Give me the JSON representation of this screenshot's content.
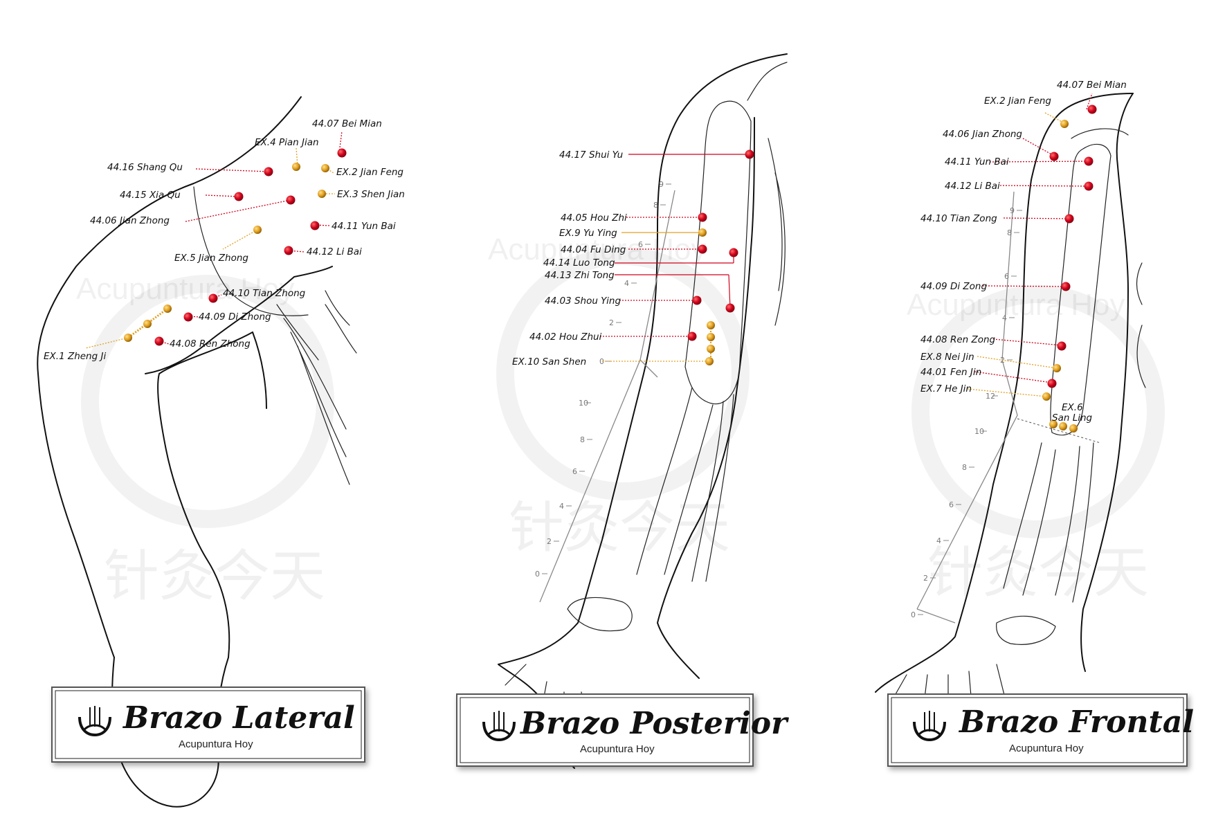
{
  "colors": {
    "main_point": "#d0021b",
    "extra_point": "#e2a021",
    "outline": "#111111",
    "scale": "#888888"
  },
  "watermark": {
    "text": "Acupuntura Hoy",
    "chinese": "针灸今天"
  },
  "panels": [
    {
      "title": "Brazo Lateral",
      "subtitle": "Acupuntura Hoy",
      "points": [
        {
          "label": "44.07 Bei Mian",
          "type": "main"
        },
        {
          "label": "EX.4 Pian Jian",
          "type": "extra"
        },
        {
          "label": "44.16 Shang Qu",
          "type": "main"
        },
        {
          "label": "EX.2 Jian Feng",
          "type": "extra"
        },
        {
          "label": "44.15 Xia Qu",
          "type": "main"
        },
        {
          "label": "EX.3 Shen Jian",
          "type": "extra"
        },
        {
          "label": "44.06 Jian Zhong",
          "type": "main"
        },
        {
          "label": "44.11 Yun Bai",
          "type": "main"
        },
        {
          "label": "EX.5 Jian Zhong",
          "type": "extra"
        },
        {
          "label": "44.12 Li Bai",
          "type": "main"
        },
        {
          "label": "44.10 Tian Zhong",
          "type": "main"
        },
        {
          "label": "44.09 Di Zhong",
          "type": "main"
        },
        {
          "label": "44.08 Ren Zhong",
          "type": "main"
        },
        {
          "label": "EX.1 Zheng Ji",
          "type": "extra"
        }
      ]
    },
    {
      "title": "Brazo Posterior",
      "subtitle": "Acupuntura Hoy",
      "scale_upper": [
        "9",
        "8",
        "6",
        "4",
        "2",
        "0"
      ],
      "scale_lower": [
        "10",
        "8",
        "6",
        "4",
        "2",
        "0"
      ],
      "points": [
        {
          "label": "44.17 Shui Yu",
          "type": "main"
        },
        {
          "label": "44.05 Hou Zhi",
          "type": "main"
        },
        {
          "label": "EX.9 Yu Ying",
          "type": "extra"
        },
        {
          "label": "44.04 Fu Ding",
          "type": "main"
        },
        {
          "label": "44.14 Luo Tong",
          "type": "main"
        },
        {
          "label": "44.13 Zhi Tong",
          "type": "main"
        },
        {
          "label": "44.03 Shou Ying",
          "type": "main"
        },
        {
          "label": "44.02 Hou Zhui",
          "type": "main"
        },
        {
          "label": "EX.10 San Shen",
          "type": "extra"
        }
      ]
    },
    {
      "title": "Brazo Frontal",
      "subtitle": "Acupuntura Hoy",
      "scale_upper": [
        "9",
        "8",
        "6",
        "4",
        "2"
      ],
      "scale_lower": [
        "12",
        "10",
        "8",
        "6",
        "4",
        "2",
        "0"
      ],
      "points": [
        {
          "label": "44.07 Bei Mian",
          "type": "main"
        },
        {
          "label": "EX.2 Jian Feng",
          "type": "extra"
        },
        {
          "label": "44.06 Jian Zhong",
          "type": "main"
        },
        {
          "label": "44.11 Yun Bai",
          "type": "main"
        },
        {
          "label": "44.12 Li Bai",
          "type": "main"
        },
        {
          "label": "44.10 Tian Zong",
          "type": "main"
        },
        {
          "label": "44.09 Di Zong",
          "type": "main"
        },
        {
          "label": "44.08 Ren Zong",
          "type": "main"
        },
        {
          "label": "EX.8 Nei Jin",
          "type": "extra"
        },
        {
          "label": "44.01 Fen Jin",
          "type": "main"
        },
        {
          "label": "EX.7 He Jin",
          "type": "extra"
        },
        {
          "label": "EX.6",
          "type": "extra"
        },
        {
          "label": "San Ling",
          "type": "extra"
        }
      ]
    }
  ]
}
